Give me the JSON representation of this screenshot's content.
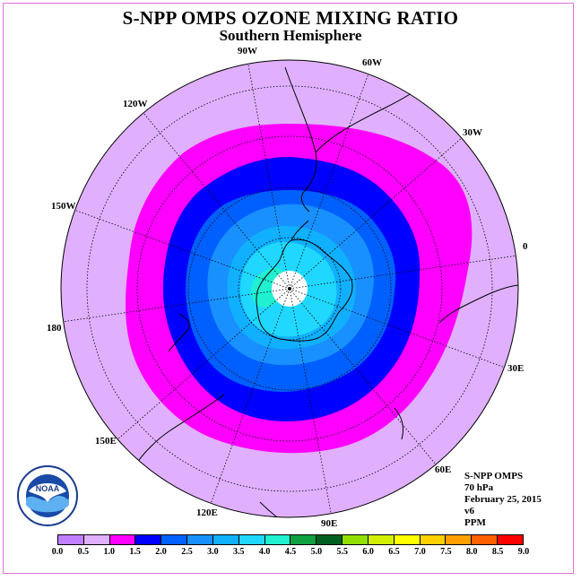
{
  "title": "S-NPP OMPS OZONE MIXING RATIO",
  "subtitle": "Southern Hemisphere",
  "longitude_labels": [
    {
      "text": "90W"
    },
    {
      "text": "60W"
    },
    {
      "text": "120W"
    },
    {
      "text": "30W"
    },
    {
      "text": "150W"
    },
    {
      "text": "0"
    },
    {
      "text": "180"
    },
    {
      "text": "30E"
    },
    {
      "text": "150E"
    },
    {
      "text": "60E"
    },
    {
      "text": "120E"
    },
    {
      "text": "90E"
    }
  ],
  "info": {
    "instrument": "S-NPP OMPS",
    "level": "70 hPa",
    "date": "February 25, 2015",
    "version": "v6",
    "units": "PPM"
  },
  "legend": {
    "ticks": [
      "0.0",
      "0.5",
      "1.0",
      "1.5",
      "2.0",
      "2.5",
      "3.0",
      "3.5",
      "4.0",
      "4.5",
      "5.0",
      "5.5",
      "6.0",
      "6.5",
      "7.0",
      "7.5",
      "8.0",
      "8.5",
      "9.0"
    ],
    "colors": [
      "#c080ff",
      "#e0b0ff",
      "#ff00ff",
      "#0000ff",
      "#0060ff",
      "#1890ff",
      "#10b0ff",
      "#20d8ff",
      "#20f0d0",
      "#10a040",
      "#006020",
      "#90e000",
      "#d0f000",
      "#ffff00",
      "#ffd000",
      "#ffa000",
      "#ff6000",
      "#ff0000",
      "#804020"
    ]
  },
  "logo": {
    "text": "NOAA",
    "icon": "noaa-logo-icon"
  },
  "map_colors": {
    "outer": "#e0b0ff",
    "band_1_0": "#ff00ff",
    "band_1_5": "#0000ff",
    "band_2_0": "#0060ff",
    "band_2_5": "#1890ff",
    "band_3_0": "#10b0ff",
    "band_3_5": "#20d8ff",
    "band_4_0": "#20f0d0",
    "pole": "#ffffff"
  }
}
